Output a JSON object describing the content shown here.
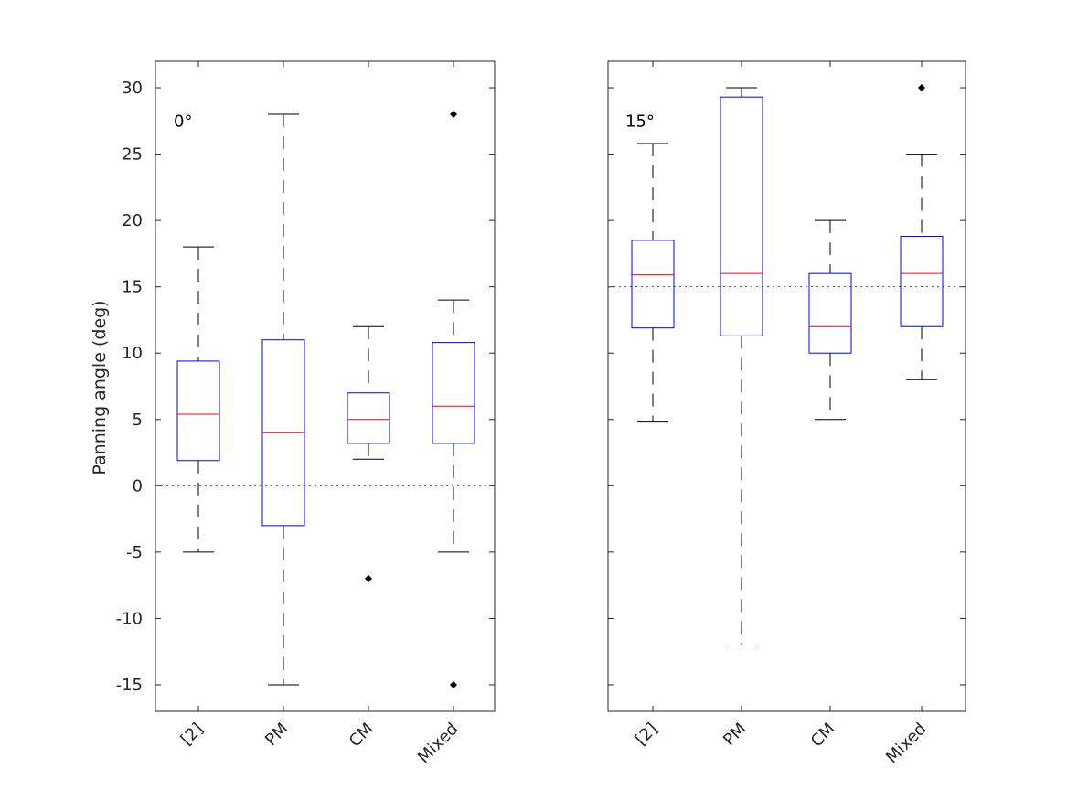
{
  "chart_data": {
    "type": "boxplot",
    "ylabel": "Panning angle (deg)",
    "ylim": [
      -17,
      32
    ],
    "yticks": [
      30,
      25,
      20,
      15,
      10,
      5,
      0,
      -5,
      -10,
      -15
    ],
    "categories": [
      "[2]",
      "PM",
      "CM",
      "Mixed"
    ],
    "colors": {
      "box": "#0000ff",
      "median": "#ff0000",
      "whisker": "#000000",
      "reference": "#555555"
    },
    "panels": [
      {
        "annotation": "0°",
        "reference": 0,
        "boxes": [
          {
            "category": "[2]",
            "lower_whisker": -5,
            "q1": 1.9,
            "median": 5.4,
            "q3": 9.4,
            "upper_whisker": 18,
            "outliers": []
          },
          {
            "category": "PM",
            "lower_whisker": -15,
            "q1": -3,
            "median": 4,
            "q3": 11,
            "upper_whisker": 28,
            "outliers": []
          },
          {
            "category": "CM",
            "lower_whisker": 2,
            "q1": 3.2,
            "median": 5,
            "q3": 7,
            "upper_whisker": 12,
            "outliers": [
              -7
            ]
          },
          {
            "category": "Mixed",
            "lower_whisker": -5,
            "q1": 3.2,
            "median": 6,
            "q3": 10.8,
            "upper_whisker": 14,
            "outliers": [
              28,
              -15
            ]
          }
        ]
      },
      {
        "annotation": "15°",
        "reference": 15,
        "boxes": [
          {
            "category": "[2]",
            "lower_whisker": 4.8,
            "q1": 11.9,
            "median": 15.9,
            "q3": 18.5,
            "upper_whisker": 25.8,
            "outliers": []
          },
          {
            "category": "PM",
            "lower_whisker": -12,
            "q1": 11.3,
            "median": 16,
            "q3": 29.3,
            "upper_whisker": 30,
            "outliers": []
          },
          {
            "category": "CM",
            "lower_whisker": 5,
            "q1": 10,
            "median": 12,
            "q3": 16,
            "upper_whisker": 20,
            "outliers": []
          },
          {
            "category": "Mixed",
            "lower_whisker": 8,
            "q1": 12,
            "median": 16,
            "q3": 18.8,
            "upper_whisker": 25,
            "outliers": [
              30
            ]
          }
        ]
      }
    ]
  }
}
